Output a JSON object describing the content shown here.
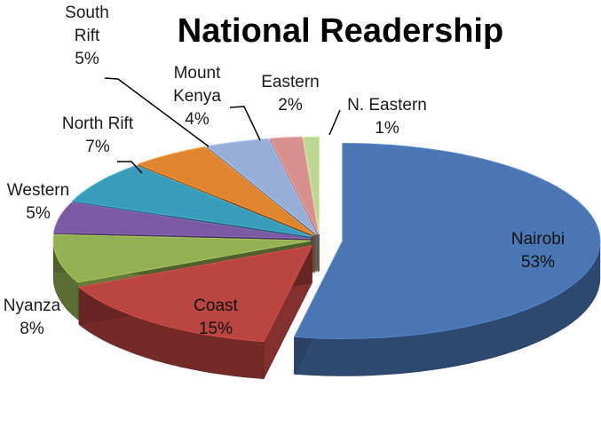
{
  "chart_data": {
    "type": "pie",
    "title": "National Readership",
    "slices": [
      {
        "label": "Nairobi",
        "value": 53,
        "display": "53%",
        "color": "#4a76b4"
      },
      {
        "label": "Coast",
        "value": 15,
        "display": "15%",
        "color": "#bb4541"
      },
      {
        "label": "Nyanza",
        "value": 8,
        "display": "8%",
        "color": "#93b052"
      },
      {
        "label": "Western",
        "value": 5,
        "display": "5%",
        "color": "#7b5aa3"
      },
      {
        "label": "North Rift",
        "value": 7,
        "display": "7%",
        "color": "#3a9cbb"
      },
      {
        "label": "South Rift",
        "value": 5,
        "display": "5%",
        "color": "#e0852f"
      },
      {
        "label": "Mount Kenya",
        "value": 4,
        "display": "4%",
        "color": "#97afd6"
      },
      {
        "label": "Eastern",
        "value": 2,
        "display": "2%",
        "color": "#d6918f"
      },
      {
        "label": "N. Eastern",
        "value": 1,
        "display": "1%",
        "color": "#bcd694"
      }
    ],
    "style": "3d-exploded",
    "legend": "none"
  }
}
